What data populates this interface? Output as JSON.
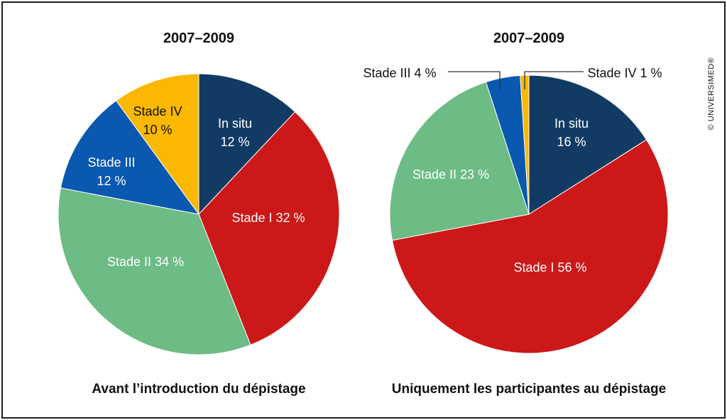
{
  "credit": "© UNIVERSIMED®",
  "chart_data": [
    {
      "type": "pie",
      "title": "2007–2009",
      "caption": "Avant l’introduction du dépistage",
      "slices": [
        {
          "name": "In situ",
          "value": 12,
          "label": [
            "In situ",
            "12 %"
          ],
          "color": "#123b63",
          "text_color": "#ffffff"
        },
        {
          "name": "Stade I",
          "value": 32,
          "label": [
            "Stade I 32 %"
          ],
          "color": "#cc1818",
          "text_color": "#ffffff"
        },
        {
          "name": "Stade II",
          "value": 34,
          "label": [
            "Stade II 34 %"
          ],
          "color": "#6dbb85",
          "text_color": "#ffffff"
        },
        {
          "name": "Stade III",
          "value": 12,
          "label": [
            "Stade III",
            "12 %"
          ],
          "color": "#0a58b0",
          "text_color": "#ffffff"
        },
        {
          "name": "Stade IV",
          "value": 10,
          "label": [
            "Stade IV",
            "10 %"
          ],
          "color": "#fbb800",
          "text_color": "#111111"
        }
      ]
    },
    {
      "type": "pie",
      "title": "2007–2009",
      "caption": "Uniquement les participantes au dépistage",
      "slices": [
        {
          "name": "In situ",
          "value": 16,
          "label": [
            "In situ",
            "16 %"
          ],
          "color": "#123b63",
          "text_color": "#ffffff"
        },
        {
          "name": "Stade I",
          "value": 56,
          "label": [
            "Stade I 56 %"
          ],
          "color": "#cc1818",
          "text_color": "#ffffff"
        },
        {
          "name": "Stade II",
          "value": 23,
          "label": [
            "Stade II 23 %"
          ],
          "color": "#6dbb85",
          "text_color": "#ffffff"
        },
        {
          "name": "Stade III",
          "value": 4,
          "label": [
            "Stade III 4 %"
          ],
          "color": "#0a58b0",
          "text_color": "#111111",
          "external": true
        },
        {
          "name": "Stade IV",
          "value": 1,
          "label": [
            "Stade IV 1 %"
          ],
          "color": "#fbb800",
          "text_color": "#111111",
          "external": true
        }
      ]
    }
  ]
}
